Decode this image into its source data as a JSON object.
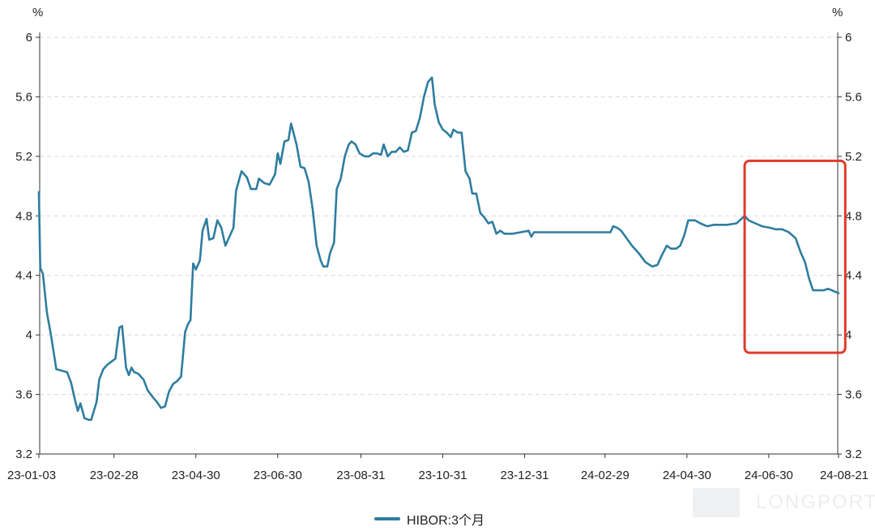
{
  "chart_data": {
    "type": "line",
    "unit_label_left": "%",
    "unit_label_right": "%",
    "ylim": [
      3.2,
      6.0
    ],
    "y_ticks": [
      "6",
      "5.6",
      "5.2",
      "4.8",
      "4.4",
      "4",
      "3.6",
      "3.2"
    ],
    "x_ticks": [
      "23-01-03",
      "23-02-28",
      "23-04-30",
      "23-06-30",
      "23-08-31",
      "23-10-31",
      "23-12-31",
      "24-02-29",
      "24-04-30",
      "24-06-30",
      "24-08-21"
    ],
    "grid": "horizontal dashed",
    "highlight_box": {
      "x_range": [
        "24-06-12",
        "24-08-26"
      ],
      "y_range": [
        3.88,
        5.17
      ],
      "color": "#e03a2b"
    },
    "series": [
      {
        "name": "HIBOR:3个月",
        "color": "#2e7d9f",
        "points": [
          [
            "23-01-03",
            4.96
          ],
          [
            "23-01-04",
            4.45
          ],
          [
            "23-01-06",
            4.41
          ],
          [
            "23-01-09",
            4.15
          ],
          [
            "23-01-12",
            4.0
          ],
          [
            "23-01-16",
            3.77
          ],
          [
            "23-01-20",
            3.76
          ],
          [
            "23-01-24",
            3.75
          ],
          [
            "23-01-27",
            3.68
          ],
          [
            "23-01-30",
            3.56
          ],
          [
            "23-02-01",
            3.49
          ],
          [
            "23-02-03",
            3.54
          ],
          [
            "23-02-06",
            3.44
          ],
          [
            "23-02-09",
            3.43
          ],
          [
            "23-02-11",
            3.43
          ],
          [
            "23-02-15",
            3.55
          ],
          [
            "23-02-17",
            3.7
          ],
          [
            "23-02-20",
            3.77
          ],
          [
            "23-02-23",
            3.8
          ],
          [
            "23-02-26",
            3.82
          ],
          [
            "23-03-01",
            3.84
          ],
          [
            "23-03-04",
            4.05
          ],
          [
            "23-03-06",
            4.06
          ],
          [
            "23-03-09",
            3.78
          ],
          [
            "23-03-11",
            3.73
          ],
          [
            "23-03-13",
            3.78
          ],
          [
            "23-03-15",
            3.75
          ],
          [
            "23-03-18",
            3.74
          ],
          [
            "23-03-22",
            3.7
          ],
          [
            "23-03-25",
            3.63
          ],
          [
            "23-03-29",
            3.58
          ],
          [
            "23-04-01",
            3.55
          ],
          [
            "23-04-04",
            3.51
          ],
          [
            "23-04-07",
            3.52
          ],
          [
            "23-04-10",
            3.62
          ],
          [
            "23-04-13",
            3.67
          ],
          [
            "23-04-16",
            3.69
          ],
          [
            "23-04-19",
            3.72
          ],
          [
            "23-04-22",
            4.02
          ],
          [
            "23-04-24",
            4.07
          ],
          [
            "23-04-26",
            4.1
          ],
          [
            "23-04-28",
            4.48
          ],
          [
            "23-04-30",
            4.44
          ],
          [
            "23-05-03",
            4.5
          ],
          [
            "23-05-05",
            4.7
          ],
          [
            "23-05-08",
            4.78
          ],
          [
            "23-05-10",
            4.64
          ],
          [
            "23-05-13",
            4.65
          ],
          [
            "23-05-16",
            4.77
          ],
          [
            "23-05-19",
            4.72
          ],
          [
            "23-05-22",
            4.6
          ],
          [
            "23-05-25",
            4.66
          ],
          [
            "23-05-28",
            4.72
          ],
          [
            "23-05-30",
            4.97
          ],
          [
            "23-06-03",
            5.1
          ],
          [
            "23-06-07",
            5.06
          ],
          [
            "23-06-10",
            4.98
          ],
          [
            "23-06-14",
            4.98
          ],
          [
            "23-06-16",
            5.05
          ],
          [
            "23-06-20",
            5.02
          ],
          [
            "23-06-24",
            5.01
          ],
          [
            "23-06-28",
            5.08
          ],
          [
            "23-06-30",
            5.22
          ],
          [
            "23-07-02",
            5.15
          ],
          [
            "23-07-05",
            5.3
          ],
          [
            "23-07-08",
            5.31
          ],
          [
            "23-07-10",
            5.42
          ],
          [
            "23-07-14",
            5.28
          ],
          [
            "23-07-17",
            5.13
          ],
          [
            "23-07-20",
            5.12
          ],
          [
            "23-07-23",
            5.03
          ],
          [
            "23-07-26",
            4.85
          ],
          [
            "23-07-29",
            4.6
          ],
          [
            "23-08-01",
            4.5
          ],
          [
            "23-08-03",
            4.46
          ],
          [
            "23-08-06",
            4.46
          ],
          [
            "23-08-08",
            4.55
          ],
          [
            "23-08-11",
            4.62
          ],
          [
            "23-08-13",
            4.98
          ],
          [
            "23-08-16",
            5.05
          ],
          [
            "23-08-19",
            5.2
          ],
          [
            "23-08-22",
            5.28
          ],
          [
            "23-08-24",
            5.3
          ],
          [
            "23-08-27",
            5.28
          ],
          [
            "23-08-30",
            5.22
          ],
          [
            "23-09-03",
            5.2
          ],
          [
            "23-09-06",
            5.2
          ],
          [
            "23-09-09",
            5.22
          ],
          [
            "23-09-12",
            5.22
          ],
          [
            "23-09-15",
            5.21
          ],
          [
            "23-09-17",
            5.28
          ],
          [
            "23-09-20",
            5.2
          ],
          [
            "23-09-23",
            5.23
          ],
          [
            "23-09-26",
            5.23
          ],
          [
            "23-09-29",
            5.26
          ],
          [
            "23-10-02",
            5.23
          ],
          [
            "23-10-05",
            5.24
          ],
          [
            "23-10-08",
            5.36
          ],
          [
            "23-10-11",
            5.37
          ],
          [
            "23-10-14",
            5.46
          ],
          [
            "23-10-17",
            5.6
          ],
          [
            "23-10-20",
            5.7
          ],
          [
            "23-10-23",
            5.73
          ],
          [
            "23-10-25",
            5.55
          ],
          [
            "23-10-28",
            5.43
          ],
          [
            "23-10-31",
            5.38
          ],
          [
            "23-11-03",
            5.36
          ],
          [
            "23-11-06",
            5.33
          ],
          [
            "23-11-08",
            5.38
          ],
          [
            "23-11-11",
            5.36
          ],
          [
            "23-11-14",
            5.36
          ],
          [
            "23-11-17",
            5.1
          ],
          [
            "23-11-20",
            5.05
          ],
          [
            "23-11-22",
            4.95
          ],
          [
            "23-11-25",
            4.95
          ],
          [
            "23-11-28",
            4.82
          ],
          [
            "23-12-01",
            4.79
          ],
          [
            "23-12-04",
            4.75
          ],
          [
            "23-12-07",
            4.76
          ],
          [
            "23-12-10",
            4.68
          ],
          [
            "23-12-13",
            4.7
          ],
          [
            "23-12-16",
            4.68
          ],
          [
            "23-12-22",
            4.68
          ],
          [
            "23-12-28",
            4.69
          ],
          [
            "24-01-03",
            4.7
          ],
          [
            "24-01-05",
            4.66
          ],
          [
            "24-01-07",
            4.69
          ],
          [
            "24-01-15",
            4.69
          ],
          [
            "24-01-25",
            4.69
          ],
          [
            "24-02-04",
            4.69
          ],
          [
            "24-02-14",
            4.69
          ],
          [
            "24-02-24",
            4.69
          ],
          [
            "24-03-04",
            4.69
          ],
          [
            "24-03-06",
            4.73
          ],
          [
            "24-03-09",
            4.72
          ],
          [
            "24-03-12",
            4.7
          ],
          [
            "24-03-16",
            4.65
          ],
          [
            "24-03-20",
            4.6
          ],
          [
            "24-03-25",
            4.55
          ],
          [
            "24-03-30",
            4.49
          ],
          [
            "24-04-04",
            4.46
          ],
          [
            "24-04-08",
            4.47
          ],
          [
            "24-04-11",
            4.53
          ],
          [
            "24-04-15",
            4.6
          ],
          [
            "24-04-18",
            4.58
          ],
          [
            "24-04-22",
            4.58
          ],
          [
            "24-04-25",
            4.6
          ],
          [
            "24-04-28",
            4.67
          ],
          [
            "24-05-01",
            4.77
          ],
          [
            "24-05-06",
            4.77
          ],
          [
            "24-05-10",
            4.75
          ],
          [
            "24-05-15",
            4.73
          ],
          [
            "24-05-20",
            4.74
          ],
          [
            "24-05-30",
            4.74
          ],
          [
            "24-06-06",
            4.75
          ],
          [
            "24-06-12",
            4.8
          ],
          [
            "24-06-15",
            4.77
          ],
          [
            "24-06-20",
            4.75
          ],
          [
            "24-06-25",
            4.73
          ],
          [
            "24-07-01",
            4.72
          ],
          [
            "24-07-05",
            4.71
          ],
          [
            "24-07-10",
            4.71
          ],
          [
            "24-07-15",
            4.69
          ],
          [
            "24-07-20",
            4.65
          ],
          [
            "24-07-24",
            4.55
          ],
          [
            "24-07-27",
            4.49
          ],
          [
            "24-07-30",
            4.38
          ],
          [
            "24-08-02",
            4.3
          ],
          [
            "24-08-06",
            4.3
          ],
          [
            "24-08-10",
            4.3
          ],
          [
            "24-08-13",
            4.31
          ],
          [
            "24-08-16",
            4.3
          ],
          [
            "24-08-21",
            4.28
          ]
        ]
      }
    ]
  },
  "legend": {
    "label": "HIBOR:3个月"
  },
  "watermark": {
    "text": "LONGPORT"
  }
}
